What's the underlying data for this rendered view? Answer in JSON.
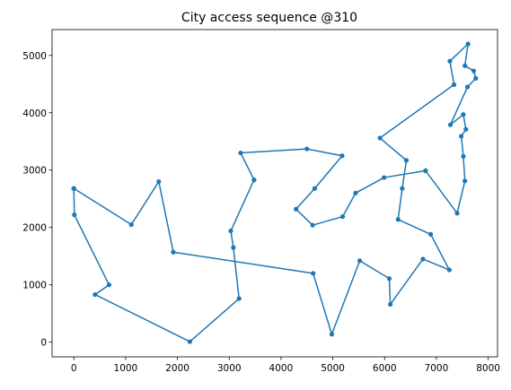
{
  "chart_data": {
    "type": "line",
    "title": "City access sequence @310",
    "xlabel": "",
    "ylabel": "",
    "xlim": [
      -420,
      8180
    ],
    "ylim": [
      -255,
      5450
    ],
    "xticks": [
      0,
      1000,
      2000,
      3000,
      4000,
      5000,
      6000,
      7000,
      8000
    ],
    "yticks": [
      0,
      1000,
      2000,
      3000,
      4000,
      5000
    ],
    "grid": false,
    "series": [
      {
        "color": "#1f77b4",
        "marker": "circle",
        "points": [
          [
            0,
            2680
          ],
          [
            10,
            2220
          ],
          [
            680,
            1000
          ],
          [
            410,
            830
          ],
          [
            2240,
            10
          ],
          [
            3190,
            760
          ],
          [
            3080,
            1650
          ],
          [
            3030,
            1940
          ],
          [
            3480,
            2830
          ],
          [
            3220,
            3300
          ],
          [
            4500,
            3370
          ],
          [
            5180,
            3250
          ],
          [
            4650,
            2680
          ],
          [
            4290,
            2320
          ],
          [
            4610,
            2040
          ],
          [
            5190,
            2190
          ],
          [
            5440,
            2600
          ],
          [
            5990,
            2870
          ],
          [
            6790,
            2990
          ],
          [
            7400,
            2250
          ],
          [
            7550,
            2810
          ],
          [
            7520,
            3240
          ],
          [
            7480,
            3590
          ],
          [
            7570,
            3710
          ],
          [
            7520,
            3970
          ],
          [
            7270,
            3790
          ],
          [
            7600,
            4450
          ],
          [
            7760,
            4600
          ],
          [
            7720,
            4730
          ],
          [
            7550,
            4820
          ],
          [
            7610,
            5200
          ],
          [
            7260,
            4900
          ],
          [
            7340,
            4490
          ],
          [
            5910,
            3560
          ],
          [
            6420,
            3170
          ],
          [
            6340,
            2680
          ],
          [
            6260,
            2140
          ],
          [
            6890,
            1880
          ],
          [
            7250,
            1260
          ],
          [
            6740,
            1450
          ],
          [
            6110,
            660
          ],
          [
            6090,
            1110
          ],
          [
            5520,
            1420
          ],
          [
            4980,
            140
          ],
          [
            4620,
            1200
          ],
          [
            1920,
            1570
          ],
          [
            1640,
            2800
          ],
          [
            1110,
            2050
          ],
          [
            0,
            2680
          ]
        ]
      }
    ]
  }
}
